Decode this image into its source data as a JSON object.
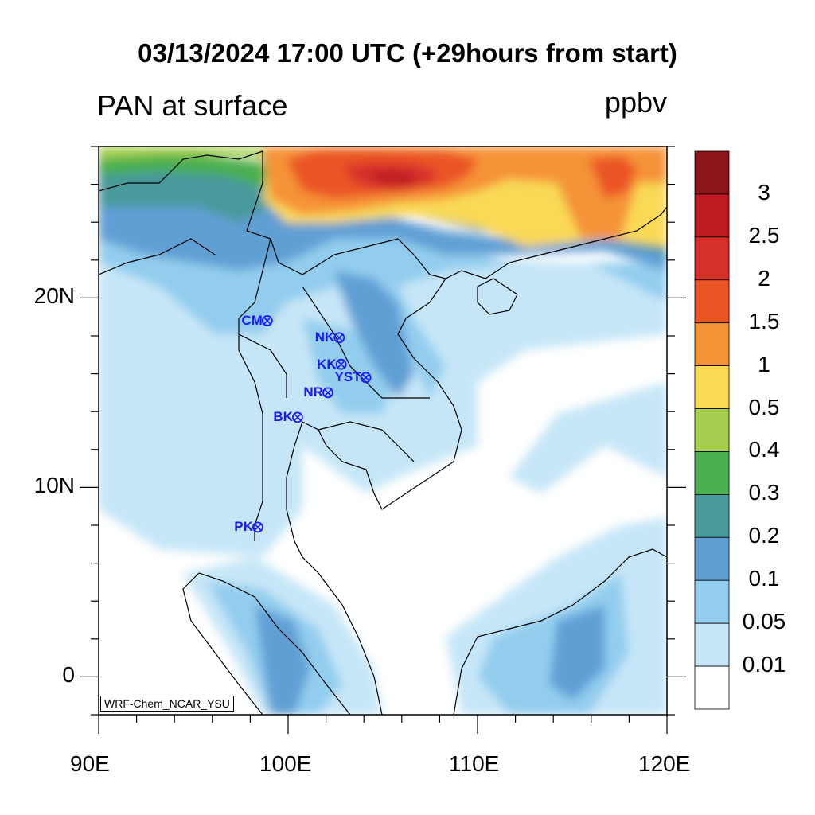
{
  "header": {
    "title": "03/13/2024 17:00 UTC (+29hours from start)",
    "variable": "PAN at surface",
    "units": "ppbv"
  },
  "credit": "WRF-Chem_NCAR_YSU",
  "axes": {
    "x_ticks": [
      "90E",
      "100E",
      "110E",
      "120E"
    ],
    "y_ticks": [
      "20N",
      "10N",
      "0"
    ],
    "lon_range": [
      90,
      120
    ],
    "lat_range": [
      -2,
      28
    ]
  },
  "colorbar": {
    "levels": [
      "0.01",
      "0.05",
      "0.1",
      "0.2",
      "0.3",
      "0.4",
      "0.5",
      "1",
      "1.5",
      "2",
      "2.5",
      "3"
    ],
    "colors": [
      "#ffffff",
      "#c6e6f7",
      "#93cdee",
      "#609fd4",
      "#4a9a9c",
      "#4caf50",
      "#a6cf50",
      "#f9d956",
      "#f59337",
      "#ea5525",
      "#d8302a",
      "#bd1d23",
      "#8c1519"
    ]
  },
  "stations": [
    {
      "name": "CM",
      "lon": 98.9,
      "lat": 18.8
    },
    {
      "name": "NK",
      "lon": 102.7,
      "lat": 17.9
    },
    {
      "name": "KK",
      "lon": 102.8,
      "lat": 16.5
    },
    {
      "name": "YST",
      "lon": 104.1,
      "lat": 15.8
    },
    {
      "name": "NR",
      "lon": 102.1,
      "lat": 15.0
    },
    {
      "name": "BK",
      "lon": 100.5,
      "lat": 13.7
    },
    {
      "name": "PK",
      "lon": 98.4,
      "lat": 7.9
    }
  ]
}
